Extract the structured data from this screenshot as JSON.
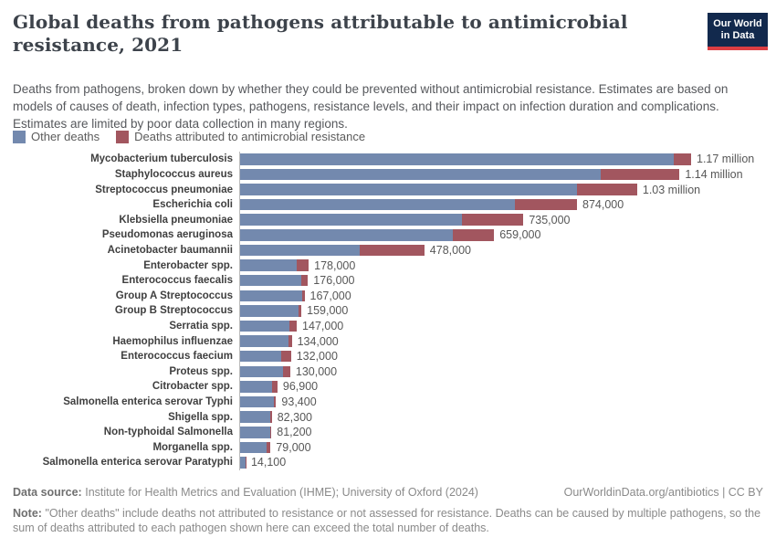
{
  "header": {
    "subtitle": "Deaths from pathogens, broken down by whether they could be prevented without antimicrobial resistance. Estimates are based on models of causes of death, infection types, pathogens, resistance levels, and their impact on infection duration and complications. Estimates are limited by poor data collection in many regions.",
    "logo": {
      "line1": "Our World",
      "line2": "in Data",
      "bg_color": "#12294d",
      "bar_color": "#dc3e43"
    }
  },
  "legend": [
    {
      "label": "Other deaths",
      "color": "#7389ae"
    },
    {
      "label": "Deaths attributed to antimicrobial resistance",
      "color": "#a2565f"
    }
  ],
  "chart_data": {
    "type": "bar",
    "orientation": "horizontal",
    "stacked": true,
    "title": "Global deaths from pathogens attributable to antimicrobial resistance, 2021",
    "xlabel": "",
    "ylabel": "",
    "grid": false,
    "legend_position": "top-left",
    "categories": [
      "Mycobacterium tuberculosis",
      "Staphylococcus aureus",
      "Streptococcus pneumoniae",
      "Escherichia coli",
      "Klebsiella pneumoniae",
      "Pseudomonas aeruginosa",
      "Acinetobacter baumannii",
      "Enterobacter spp.",
      "Enterococcus faecalis",
      "Group A Streptococcus",
      "Group B Streptococcus",
      "Serratia spp.",
      "Haemophilus influenzae",
      "Enterococcus faecium",
      "Proteus spp.",
      "Citrobacter spp.",
      "Salmonella enterica serovar Typhi",
      "Shigella spp.",
      "Non-typhoidal Salmonella",
      "Morganella spp.",
      "Salmonella enterica serovar Paratyphi"
    ],
    "series": [
      {
        "name": "Other deaths",
        "color": "#7389ae",
        "values": [
          1125000,
          935000,
          874000,
          714000,
          575000,
          552000,
          310000,
          146000,
          158000,
          160500,
          151000,
          127000,
          124500,
          107000,
          111000,
          83400,
          86900,
          78300,
          78700,
          69500,
          13600
        ]
      },
      {
        "name": "Deaths attributed to antimicrobial resistance",
        "color": "#a2565f",
        "values": [
          45000,
          205000,
          156000,
          160000,
          160000,
          107000,
          168000,
          32000,
          18000,
          6500,
          8000,
          20000,
          9500,
          25000,
          19000,
          13500,
          6500,
          4000,
          2500,
          9500,
          500
        ]
      }
    ],
    "totals": [
      1170000,
      1140000,
      1030000,
      874000,
      735000,
      659000,
      478000,
      178000,
      176000,
      167000,
      159000,
      147000,
      134000,
      132000,
      130000,
      96900,
      93400,
      82300,
      81200,
      79000,
      14100
    ],
    "total_labels": [
      "1.17 million",
      "1.14 million",
      "1.03 million",
      "874,000",
      "735,000",
      "659,000",
      "478,000",
      "178,000",
      "176,000",
      "167,000",
      "159,000",
      "147,000",
      "134,000",
      "132,000",
      "130,000",
      "96,900",
      "93,400",
      "82,300",
      "81,200",
      "79,000",
      "14,100"
    ],
    "xlim": [
      0,
      1200000
    ]
  },
  "footer": {
    "datasource_label": "Data source:",
    "datasource": "Institute for Health Metrics and Evaluation (IHME); University of Oxford (2024)",
    "link": "OurWorldinData.org/antibiotics | CC BY",
    "note_label": "Note:",
    "note": "\"Other deaths\" include deaths not attributed to resistance or not assessed for resistance. Deaths can be caused by multiple pathogens, so the sum of deaths attributed to each pathogen shown here can exceed the total number of deaths."
  }
}
